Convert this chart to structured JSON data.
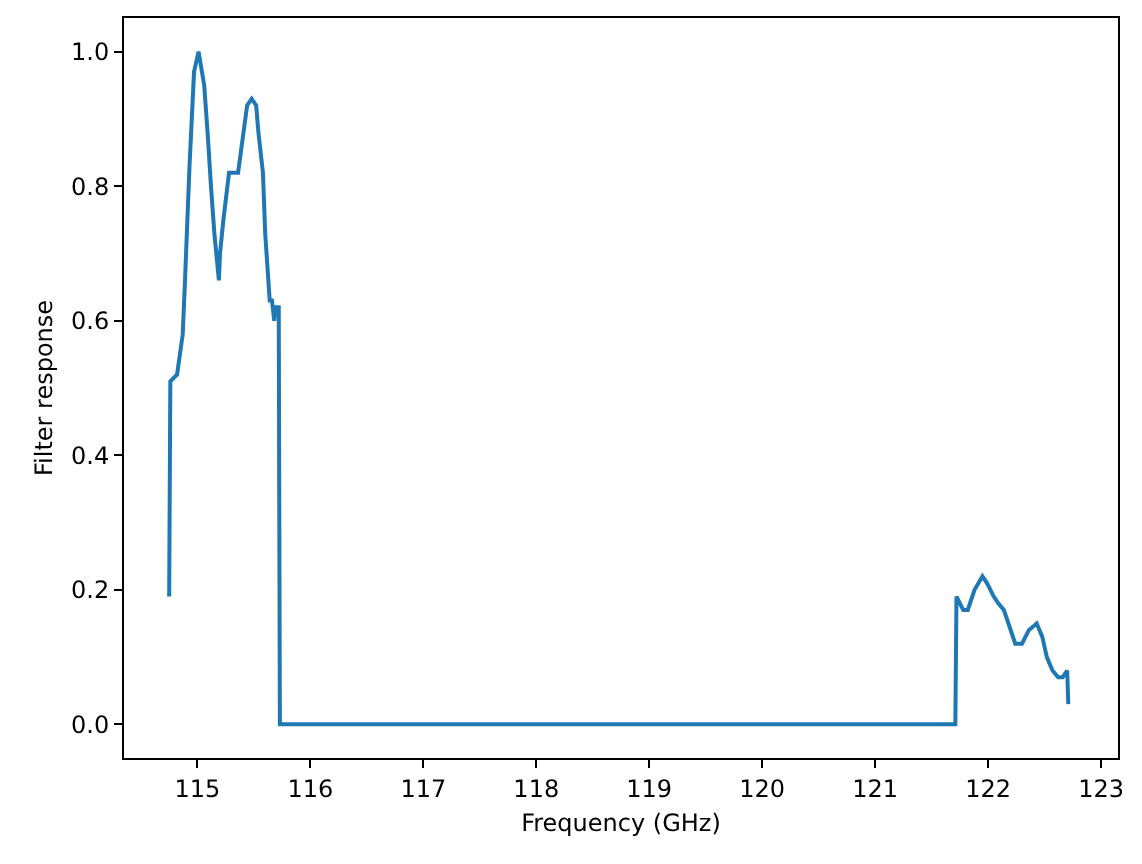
{
  "chart_data": {
    "type": "line",
    "xlabel": "Frequency (GHz)",
    "ylabel": "Filter response",
    "color": "#1f77b4",
    "x": [
      114.75,
      114.76,
      114.82,
      114.87,
      114.89,
      114.93,
      114.97,
      115.01,
      115.06,
      115.09,
      115.12,
      115.15,
      115.19,
      115.2,
      115.23,
      115.28,
      115.32,
      115.36,
      115.44,
      115.48,
      115.52,
      115.54,
      115.58,
      115.6,
      115.64,
      115.66,
      115.68,
      115.69,
      115.72,
      115.73,
      121.71,
      121.72,
      121.78,
      121.82,
      121.88,
      121.95,
      121.99,
      122.05,
      122.09,
      122.14,
      122.2,
      122.24,
      122.3,
      122.36,
      122.43,
      122.48,
      122.52,
      122.57,
      122.62,
      122.66,
      122.7,
      122.71
    ],
    "values": [
      0.19,
      0.51,
      0.52,
      0.58,
      0.66,
      0.83,
      0.97,
      1.0,
      0.95,
      0.88,
      0.8,
      0.73,
      0.66,
      0.7,
      0.75,
      0.82,
      0.82,
      0.82,
      0.92,
      0.93,
      0.92,
      0.88,
      0.82,
      0.73,
      0.63,
      0.63,
      0.6,
      0.62,
      0.62,
      0,
      0,
      0.19,
      0.17,
      0.17,
      0.2,
      0.22,
      0.21,
      0.19,
      0.18,
      0.17,
      0.14,
      0.12,
      0.12,
      0.14,
      0.15,
      0.13,
      0.1,
      0.08,
      0.07,
      0.07,
      0.08,
      0.03
    ],
    "xlim": [
      114.35,
      123.15
    ],
    "xticks": [
      115,
      116,
      117,
      118,
      119,
      120,
      121,
      122,
      123
    ],
    "ylim": [
      -0.05,
      1.05
    ],
    "yticks": [
      {
        "value": 0,
        "label": "0.0"
      },
      0.2,
      0.4,
      0.6,
      0.8,
      {
        "value": 1,
        "label": "1.0"
      }
    ]
  }
}
